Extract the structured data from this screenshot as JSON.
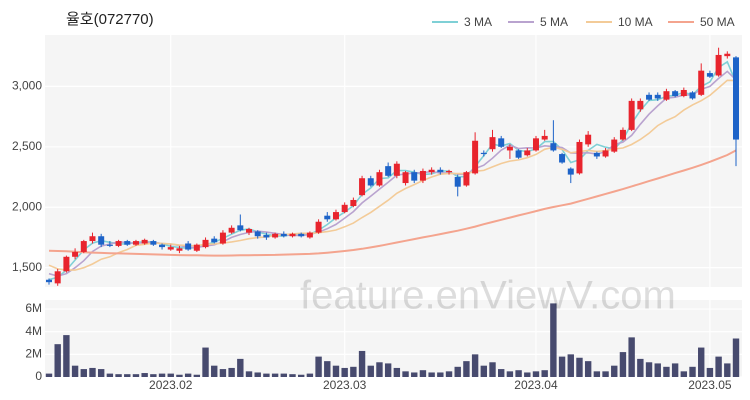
{
  "chart_data": {
    "type": "candlestick",
    "title": "율호(072770)",
    "watermark": "feature.enViewV.com",
    "grid": true,
    "up_color": "#e8242d",
    "down_color": "#1d63c8",
    "categories": [
      null,
      null,
      null,
      null,
      null,
      null,
      null,
      null,
      null,
      null,
      null,
      null,
      null,
      null,
      "2023.02",
      null,
      null,
      null,
      null,
      null,
      null,
      null,
      null,
      null,
      null,
      null,
      null,
      null,
      null,
      null,
      null,
      null,
      null,
      null,
      "2023.03",
      null,
      null,
      null,
      null,
      null,
      null,
      null,
      null,
      null,
      null,
      null,
      null,
      null,
      null,
      null,
      null,
      null,
      null,
      null,
      null,
      null,
      "2023.04",
      null,
      null,
      null,
      null,
      null,
      null,
      null,
      null,
      null,
      null,
      null,
      null,
      null,
      null,
      null,
      null,
      null,
      null,
      null,
      "2023.05",
      null,
      null,
      null
    ],
    "open": [
      1400,
      1370,
      1470,
      1590,
      1630,
      1720,
      1760,
      1690,
      1680,
      1720,
      1690,
      1700,
      1720,
      1690,
      1650,
      1640,
      1700,
      1640,
      1670,
      1740,
      1700,
      1790,
      1850,
      1790,
      1800,
      1770,
      1750,
      1780,
      1760,
      1780,
      1750,
      1790,
      1930,
      1900,
      1960,
      2010,
      2100,
      2240,
      2180,
      2340,
      2260,
      2200,
      2290,
      2220,
      2290,
      2310,
      2290,
      2250,
      2180,
      2280,
      2450,
      2480,
      2570,
      2470,
      2470,
      2430,
      2470,
      2560,
      2530,
      2440,
      2320,
      2280,
      2520,
      2450,
      2420,
      2460,
      2560,
      2640,
      2810,
      2930,
      2930,
      2890,
      2960,
      2920,
      2950,
      2930,
      3110,
      3090,
      3250,
      3240
    ],
    "high": [
      1410,
      1490,
      1600,
      1660,
      1730,
      1790,
      1780,
      1720,
      1730,
      1730,
      1730,
      1740,
      1730,
      1700,
      1690,
      1680,
      1720,
      1700,
      1750,
      1760,
      1810,
      1850,
      1940,
      1830,
      1810,
      1790,
      1790,
      1800,
      1790,
      1790,
      1800,
      1900,
      1960,
      1980,
      2040,
      2080,
      2260,
      2260,
      2310,
      2370,
      2380,
      2300,
      2310,
      2320,
      2330,
      2330,
      2310,
      2270,
      2300,
      2620,
      2470,
      2640,
      2590,
      2520,
      2480,
      2490,
      2590,
      2640,
      2720,
      2450,
      2330,
      2560,
      2630,
      2460,
      2490,
      2580,
      2660,
      2900,
      2900,
      2950,
      2950,
      2980,
      2970,
      2990,
      2960,
      3190,
      3130,
      3320,
      3290,
      3250
    ],
    "low": [
      1360,
      1350,
      1460,
      1570,
      1620,
      1700,
      1670,
      1670,
      1670,
      1680,
      1680,
      1690,
      1680,
      1650,
      1640,
      1620,
      1640,
      1630,
      1660,
      1700,
      1690,
      1780,
      1800,
      1770,
      1740,
      1730,
      1740,
      1750,
      1750,
      1750,
      1740,
      1780,
      1880,
      1890,
      1950,
      2000,
      2090,
      2170,
      2170,
      2250,
      2240,
      2180,
      2200,
      2200,
      2270,
      2270,
      2270,
      2090,
      2170,
      2270,
      2420,
      2460,
      2490,
      2400,
      2400,
      2420,
      2460,
      2550,
      2460,
      2360,
      2200,
      2270,
      2500,
      2400,
      2410,
      2450,
      2550,
      2630,
      2790,
      2880,
      2880,
      2880,
      2910,
      2910,
      2890,
      2920,
      3070,
      3080,
      3230,
      2340
    ],
    "close": [
      1380,
      1470,
      1590,
      1630,
      1720,
      1760,
      1690,
      1680,
      1720,
      1690,
      1720,
      1730,
      1690,
      1670,
      1670,
      1660,
      1650,
      1690,
      1730,
      1710,
      1790,
      1830,
      1810,
      1820,
      1760,
      1750,
      1780,
      1760,
      1780,
      1760,
      1790,
      1880,
      1900,
      1960,
      2020,
      2060,
      2240,
      2180,
      2290,
      2260,
      2360,
      2290,
      2220,
      2300,
      2310,
      2290,
      2300,
      2170,
      2290,
      2550,
      2440,
      2580,
      2500,
      2500,
      2410,
      2470,
      2570,
      2590,
      2470,
      2370,
      2270,
      2540,
      2600,
      2420,
      2470,
      2560,
      2640,
      2880,
      2880,
      2890,
      2900,
      2960,
      2920,
      2970,
      2900,
      3130,
      3080,
      3260,
      3270,
      2560
    ],
    "ylim": [
      1340,
      3425
    ],
    "yticks": [
      {
        "value": 1500,
        "label": "1,500"
      },
      {
        "value": 2000,
        "label": "2,000"
      },
      {
        "value": 2500,
        "label": "2,500"
      },
      {
        "value": 3000,
        "label": "3,000"
      }
    ],
    "series": [
      {
        "name": "3 MA",
        "color": "#7fd0d6",
        "values": [
          1400,
          1420,
          1480,
          1563,
          1647,
          1703,
          1723,
          1710,
          1697,
          1697,
          1710,
          1713,
          1713,
          1697,
          1677,
          1667,
          1660,
          1667,
          1690,
          1710,
          1743,
          1777,
          1810,
          1820,
          1797,
          1777,
          1763,
          1763,
          1773,
          1767,
          1777,
          1810,
          1857,
          1913,
          1960,
          2013,
          2107,
          2160,
          2237,
          2243,
          2303,
          2303,
          2290,
          2270,
          2277,
          2300,
          2300,
          2253,
          2253,
          2337,
          2427,
          2523,
          2507,
          2527,
          2470,
          2460,
          2483,
          2543,
          2543,
          2477,
          2370,
          2393,
          2470,
          2520,
          2497,
          2483,
          2557,
          2693,
          2800,
          2883,
          2890,
          2917,
          2927,
          2950,
          2930,
          3000,
          3037,
          3157,
          3203,
          3030
        ]
      },
      {
        "name": "5 MA",
        "color": "#b9a3cf",
        "values": [
          1450,
          1430,
          1450,
          1500,
          1558,
          1634,
          1678,
          1696,
          1714,
          1708,
          1700,
          1708,
          1710,
          1700,
          1696,
          1684,
          1668,
          1668,
          1680,
          1688,
          1714,
          1750,
          1774,
          1792,
          1802,
          1794,
          1784,
          1774,
          1766,
          1766,
          1774,
          1794,
          1822,
          1858,
          1910,
          1964,
          2036,
          2092,
          2150,
          2206,
          2266,
          2276,
          2284,
          2286,
          2296,
          2282,
          2284,
          2274,
          2272,
          2320,
          2348,
          2406,
          2472,
          2514,
          2486,
          2492,
          2490,
          2508,
          2502,
          2494,
          2448,
          2448,
          2450,
          2440,
          2460,
          2518,
          2538,
          2594,
          2686,
          2770,
          2838,
          2902,
          2910,
          2928,
          2930,
          2976,
          3000,
          3066,
          3124,
          3054
        ]
      },
      {
        "name": "10 MA",
        "color": "#f3cb98",
        "values": [
          1520,
          1490,
          1480,
          1480,
          1500,
          1530,
          1570,
          1590,
          1625,
          1650,
          1685,
          1693,
          1703,
          1701,
          1697,
          1687,
          1683,
          1682,
          1694,
          1696,
          1703,
          1713,
          1725,
          1740,
          1749,
          1754,
          1767,
          1774,
          1779,
          1784,
          1784,
          1789,
          1798,
          1812,
          1838,
          1869,
          1915,
          1957,
          2008,
          2058,
          2115,
          2155,
          2187,
          2221,
          2250,
          2273,
          2279,
          2278,
          2278,
          2297,
          2305,
          2334,
          2362,
          2382,
          2392,
          2410,
          2437,
          2479,
          2497,
          2479,
          2450,
          2460,
          2470,
          2462,
          2468,
          2483,
          2490,
          2519,
          2560,
          2612,
          2675,
          2717,
          2749,
          2804,
          2847,
          2881,
          2925,
          2987,
          3050,
          3048
        ]
      },
      {
        "name": "50 MA",
        "color": "#f4a48e",
        "values": [
          1640,
          1638,
          1635,
          1632,
          1628,
          1625,
          1622,
          1620,
          1618,
          1616,
          1614,
          1612,
          1610,
          1608,
          1606,
          1604,
          1603,
          1602,
          1601,
          1600,
          1600,
          1601,
          1602,
          1603,
          1604,
          1605,
          1606,
          1608,
          1610,
          1612,
          1614,
          1618,
          1624,
          1630,
          1638,
          1646,
          1656,
          1668,
          1680,
          1694,
          1708,
          1722,
          1736,
          1750,
          1764,
          1778,
          1792,
          1806,
          1822,
          1840,
          1860,
          1878,
          1896,
          1914,
          1932,
          1950,
          1968,
          1986,
          2002,
          2016,
          2030,
          2050,
          2070,
          2090,
          2110,
          2130,
          2150,
          2172,
          2194,
          2216,
          2238,
          2260,
          2282,
          2304,
          2326,
          2350,
          2376,
          2404,
          2432,
          2470
        ]
      }
    ],
    "volume": {
      "color": "#474a6e",
      "ylim": [
        0,
        6800000
      ],
      "yticks": [
        0,
        {
          "value": 2000000,
          "label": "2M"
        },
        {
          "value": 4000000,
          "label": "4M"
        },
        {
          "value": 6000000,
          "label": "6M"
        }
      ],
      "values": [
        300000,
        2900000,
        3700000,
        1000000,
        700000,
        800000,
        700000,
        300000,
        250000,
        250000,
        250000,
        350000,
        250000,
        300000,
        300000,
        200000,
        300000,
        200000,
        2600000,
        1000000,
        700000,
        800000,
        1600000,
        500000,
        400000,
        300000,
        300000,
        300000,
        250000,
        200000,
        300000,
        1800000,
        1400000,
        1000000,
        800000,
        900000,
        2300000,
        1000000,
        1300000,
        1200000,
        800000,
        500000,
        400000,
        600000,
        400000,
        400000,
        500000,
        900000,
        1400000,
        2000000,
        1000000,
        1300000,
        700000,
        500000,
        600000,
        400000,
        500000,
        600000,
        6500000,
        1800000,
        2000000,
        1700000,
        1400000,
        500000,
        500000,
        1000000,
        2200000,
        3500000,
        1600000,
        1300000,
        1200000,
        900000,
        1200000,
        500000,
        900000,
        2600000,
        800000,
        1800000,
        1200000,
        3400000
      ]
    }
  }
}
